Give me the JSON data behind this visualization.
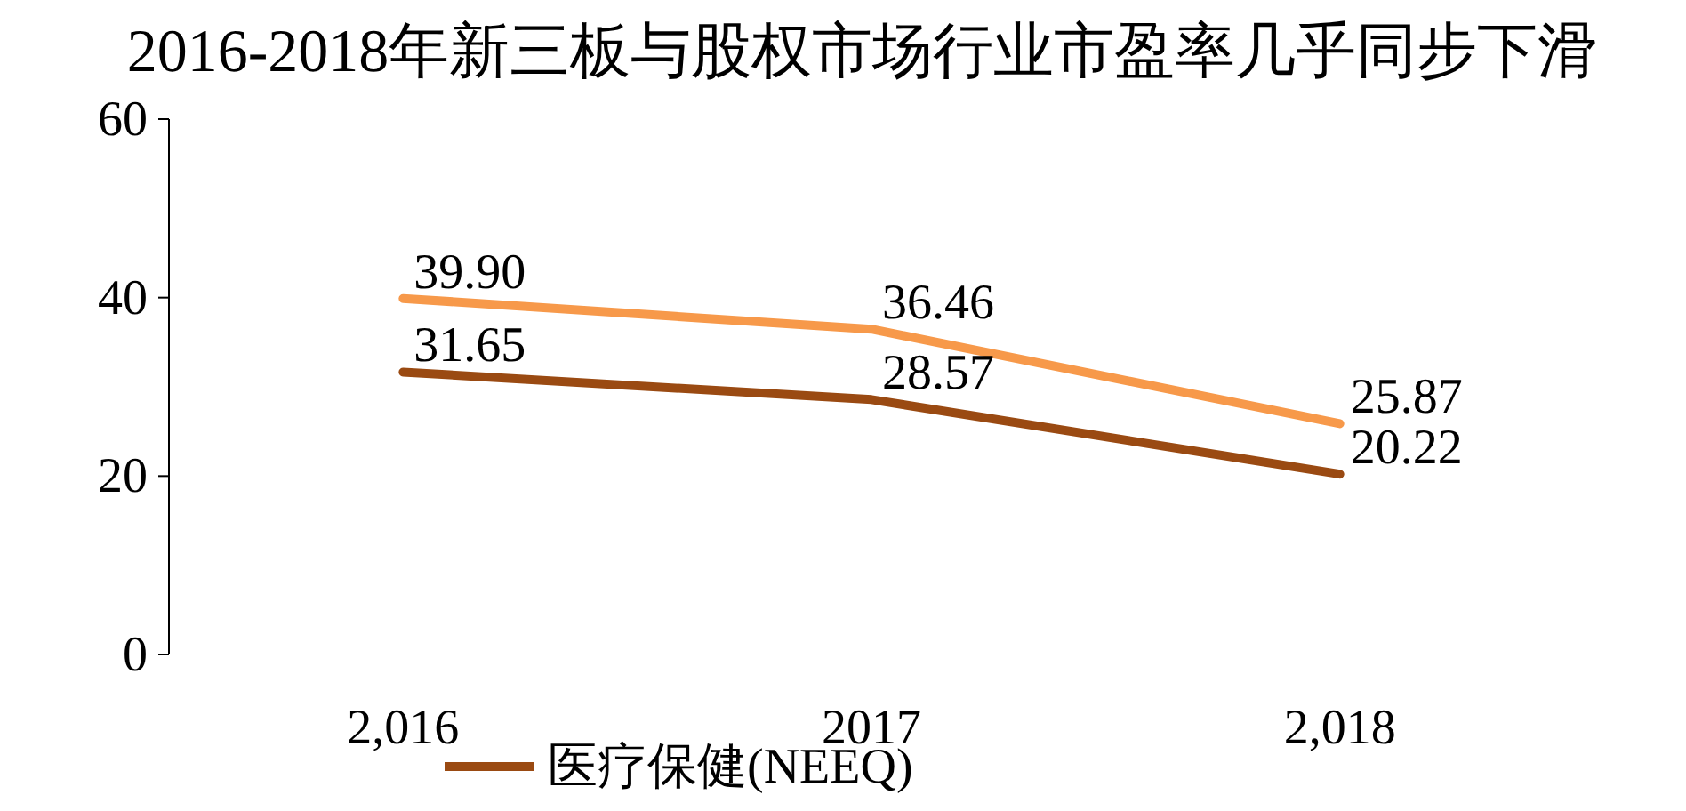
{
  "chart_data": {
    "type": "line",
    "title": "2016-2018年新三板与股权市场行业市盈率几乎同步下滑",
    "categories": [
      "2,016",
      "2017",
      "2,018"
    ],
    "series": [
      {
        "color": "#f7994a",
        "values": [
          39.9,
          36.46,
          25.87
        ],
        "value_labels": [
          "39.90",
          "36.46",
          "25.87"
        ]
      },
      {
        "name": "医疗保健(NEEQ)",
        "color": "#9a4a12",
        "values": [
          31.65,
          28.57,
          20.22
        ],
        "value_labels": [
          "31.65",
          "28.57",
          "20.22"
        ]
      }
    ],
    "ylim": [
      0,
      60
    ],
    "yticks": [
      0,
      20,
      40,
      60
    ],
    "grid": false,
    "legend": "bottom",
    "marker": "none",
    "line_style": "solid"
  }
}
